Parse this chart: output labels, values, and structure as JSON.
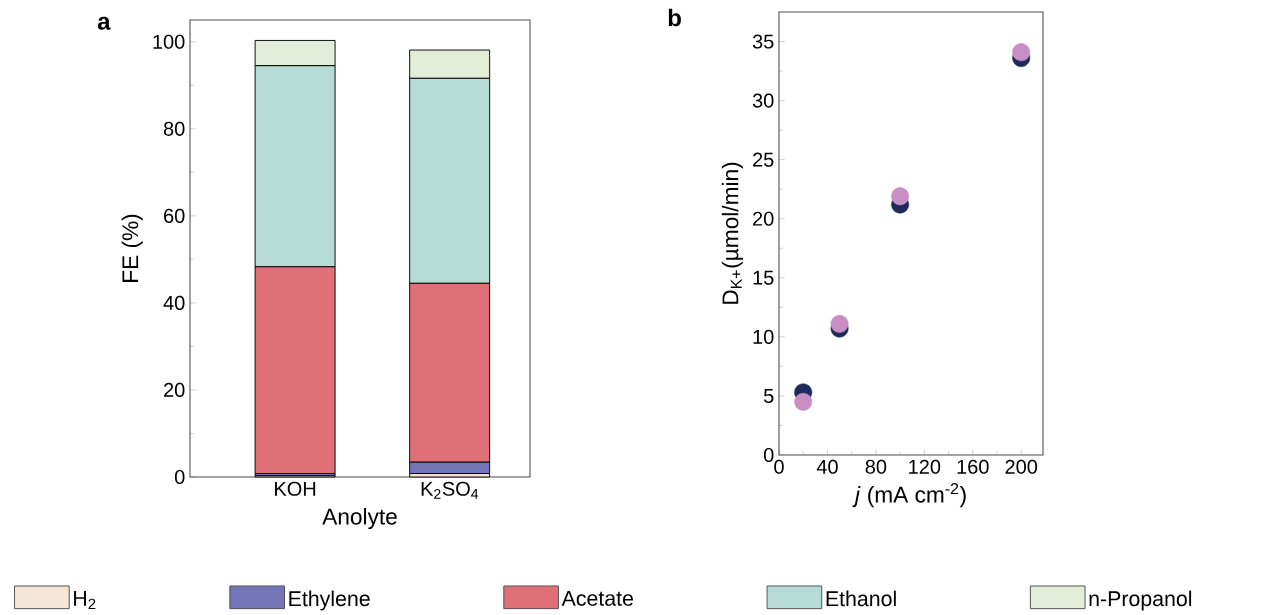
{
  "chart_data": [
    {
      "type": "bar",
      "title": "a",
      "stacked": true,
      "xlabel": "Anolyte",
      "ylabel": "FE (%)",
      "categories": [
        "KOH",
        "K$_{2}$SO$_{4}$"
      ],
      "series": [
        {
          "name": "H$_{2}$",
          "color": "#f5e6d8",
          "values": [
            0.3,
            0.8
          ]
        },
        {
          "name": "Ethylene",
          "color": "#7474b8",
          "values": [
            0.5,
            2.6
          ]
        },
        {
          "name": "Acetate",
          "color": "#df7077",
          "values": [
            47.5,
            41.1
          ]
        },
        {
          "name": "Ethanol",
          "color": "#b5dbd4",
          "values": [
            46.2,
            47.1
          ]
        },
        {
          "name": "n-Propanol",
          "color": "#e2ecd6",
          "values": [
            5.8,
            6.5
          ]
        }
      ],
      "ylim": [
        0,
        105
      ],
      "yticks": [
        0,
        {
          "value": 10,
          "label": null
        },
        20,
        {
          "value": 30,
          "label": null
        },
        40,
        {
          "value": 50,
          "label": null
        },
        60,
        {
          "value": 70,
          "label": null
        },
        80,
        {
          "value": 90,
          "label": null
        },
        100
      ],
      "legend": "bottom"
    },
    {
      "type": "scatter",
      "title": "b",
      "xlabel": "*j* (mA cm$^{-2}$)",
      "ylabel": "D$_{K+}$(µmol/min)",
      "x": [
        20,
        50,
        100,
        200
      ],
      "series": [
        {
          "color": "#1f2a5a",
          "values": [
            5.3,
            10.7,
            21.2,
            33.6
          ]
        },
        {
          "color": "#c98fc4",
          "values": [
            4.5,
            11.1,
            21.9,
            34.1
          ]
        }
      ],
      "xlim": [
        0,
        218
      ],
      "ylim": [
        0,
        37.5
      ],
      "xticks": [
        0,
        {
          "value": 20,
          "label": null
        },
        40,
        {
          "value": 60,
          "label": null
        },
        80,
        {
          "value": 100,
          "label": null
        },
        120,
        {
          "value": 140,
          "label": null
        },
        160,
        {
          "value": 180,
          "label": null
        },
        200
      ],
      "yticks": [
        0,
        {
          "value": 2.5,
          "label": null
        },
        5,
        {
          "value": 7.5,
          "label": null
        },
        10,
        {
          "value": 12.5,
          "label": null
        },
        15,
        {
          "value": 17.5,
          "label": null
        },
        20,
        {
          "value": 22.5,
          "label": null
        },
        25,
        {
          "value": 27.5,
          "label": null
        },
        30,
        {
          "value": 32.5,
          "label": null
        },
        35
      ]
    }
  ]
}
